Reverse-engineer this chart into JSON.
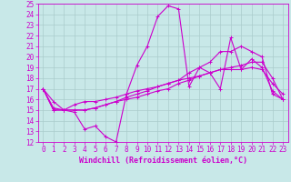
{
  "xlabel": "Windchill (Refroidissement éolien,°C)",
  "background_color": "#c8e8e8",
  "grid_color": "#aacccc",
  "line_color": "#cc00cc",
  "xlim": [
    -0.5,
    23.5
  ],
  "ylim": [
    12,
    25
  ],
  "xticks": [
    0,
    1,
    2,
    3,
    4,
    5,
    6,
    7,
    8,
    9,
    10,
    11,
    12,
    13,
    14,
    15,
    16,
    17,
    18,
    19,
    20,
    21,
    22,
    23
  ],
  "yticks": [
    12,
    13,
    14,
    15,
    16,
    17,
    18,
    19,
    20,
    21,
    22,
    23,
    24,
    25
  ],
  "lines": [
    {
      "x": [
        0,
        1,
        2,
        3,
        4,
        5,
        6,
        7,
        8,
        9,
        10,
        11,
        12,
        13,
        14,
        15,
        16,
        17,
        18,
        19,
        20,
        21,
        22,
        23
      ],
      "y": [
        17.0,
        15.8,
        15.0,
        14.8,
        13.2,
        13.5,
        12.5,
        12.0,
        16.5,
        19.2,
        21.0,
        23.8,
        24.8,
        24.5,
        17.2,
        19.0,
        18.5,
        17.0,
        21.8,
        18.8,
        19.8,
        19.0,
        16.8,
        16.0
      ]
    },
    {
      "x": [
        0,
        1,
        2,
        3,
        4,
        5,
        6,
        7,
        8,
        9,
        10,
        11,
        12,
        13,
        14,
        15,
        16,
        17,
        18,
        19,
        20,
        21,
        22,
        23
      ],
      "y": [
        17.0,
        15.0,
        15.0,
        15.0,
        15.0,
        15.2,
        15.5,
        15.8,
        16.2,
        16.5,
        16.8,
        17.2,
        17.5,
        17.8,
        18.0,
        18.2,
        18.5,
        18.8,
        18.8,
        18.8,
        19.0,
        18.8,
        17.5,
        16.5
      ]
    },
    {
      "x": [
        0,
        1,
        2,
        3,
        4,
        5,
        6,
        7,
        8,
        9,
        10,
        11,
        12,
        13,
        14,
        15,
        16,
        17,
        18,
        19,
        20,
        21,
        22,
        23
      ],
      "y": [
        17.0,
        15.0,
        15.0,
        15.0,
        15.0,
        15.2,
        15.5,
        15.8,
        16.0,
        16.2,
        16.5,
        16.8,
        17.0,
        17.5,
        17.8,
        18.2,
        18.5,
        18.8,
        19.0,
        19.2,
        19.5,
        19.5,
        18.0,
        16.0
      ]
    },
    {
      "x": [
        0,
        1,
        2,
        3,
        4,
        5,
        6,
        7,
        8,
        9,
        10,
        11,
        12,
        13,
        14,
        15,
        16,
        17,
        18,
        19,
        20,
        21,
        22,
        23
      ],
      "y": [
        17.0,
        15.2,
        15.0,
        15.5,
        15.8,
        15.8,
        16.0,
        16.2,
        16.5,
        16.8,
        17.0,
        17.2,
        17.5,
        17.8,
        18.5,
        19.0,
        19.5,
        20.5,
        20.5,
        21.0,
        20.5,
        20.0,
        16.5,
        16.0
      ]
    }
  ],
  "marker": "+",
  "marker_size": 3,
  "linewidth": 0.8,
  "xlabel_fontsize": 6,
  "tick_fontsize": 5.5
}
